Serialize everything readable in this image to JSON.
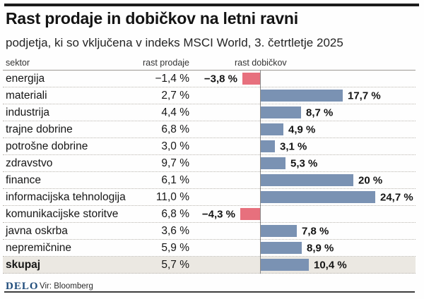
{
  "header": {
    "title": "Rast prodaje in dobičkov na letni ravni",
    "subtitle": "podjetja, ki so vključena v indeks MSCI World, 3. četrtletje 2025"
  },
  "table": {
    "columns": [
      "sektor",
      "rast prodaje",
      "rast dobičkov"
    ]
  },
  "chart_data": {
    "type": "bar",
    "orientation": "horizontal",
    "title": "Rast prodaje in dobičkov na letni ravni",
    "subtitle": "podjetja, ki so vključena v indeks MSCI World, 3. četrtletje 2025",
    "categories": [
      "energija",
      "materiali",
      "industrija",
      "trajne dobrine",
      "potrošne dobrine",
      "zdravstvo",
      "finance",
      "informacijska tehnologija",
      "komunikacijske storitve",
      "javna oskrba",
      "nepremičnine",
      "skupaj"
    ],
    "series": [
      {
        "name": "rast prodaje",
        "values": [
          -1.4,
          2.7,
          4.4,
          6.8,
          3.0,
          9.7,
          6.1,
          11.0,
          6.8,
          3.6,
          5.9,
          5.7
        ]
      },
      {
        "name": "rast dobičkov",
        "values": [
          -3.8,
          17.7,
          8.7,
          4.9,
          3.1,
          5.3,
          20,
          24.7,
          -4.3,
          7.8,
          8.9,
          10.4
        ]
      }
    ],
    "xlim": [
      -5,
      26
    ],
    "grid": "dotted-row-separators",
    "colors": {
      "positive_bar": "#7a92b3",
      "negative_bar": "#e7707d",
      "total_row_bg": "#ebe8e2"
    },
    "rows": [
      {
        "sector": "energija",
        "sales": "−1,4 %",
        "profit_label": "−3,8 %",
        "profit_value": -3.8,
        "total": false
      },
      {
        "sector": "materiali",
        "sales": "2,7 %",
        "profit_label": "17,7 %",
        "profit_value": 17.7,
        "total": false
      },
      {
        "sector": "industrija",
        "sales": "4,4 %",
        "profit_label": "8,7 %",
        "profit_value": 8.7,
        "total": false
      },
      {
        "sector": "trajne dobrine",
        "sales": "6,8 %",
        "profit_label": "4,9 %",
        "profit_value": 4.9,
        "total": false
      },
      {
        "sector": "potrošne dobrine",
        "sales": "3,0 %",
        "profit_label": "3,1 %",
        "profit_value": 3.1,
        "total": false
      },
      {
        "sector": "zdravstvo",
        "sales": "9,7 %",
        "profit_label": "5,3 %",
        "profit_value": 5.3,
        "total": false
      },
      {
        "sector": "finance",
        "sales": "6,1 %",
        "profit_label": "20 %",
        "profit_value": 20,
        "total": false
      },
      {
        "sector": "informacijska tehnologija",
        "sales": "11,0 %",
        "profit_label": "24,7 %",
        "profit_value": 24.7,
        "total": false
      },
      {
        "sector": "komunikacijske storitve",
        "sales": "6,8 %",
        "profit_label": "−4,3 %",
        "profit_value": -4.3,
        "total": false
      },
      {
        "sector": "javna oskrba",
        "sales": "3,6 %",
        "profit_label": "7,8 %",
        "profit_value": 7.8,
        "total": false
      },
      {
        "sector": "nepremičnine",
        "sales": "5,9 %",
        "profit_label": "8,9 %",
        "profit_value": 8.9,
        "total": false
      },
      {
        "sector": "skupaj",
        "sales": "5,7 %",
        "profit_label": "10,4 %",
        "profit_value": 10.4,
        "total": true
      }
    ]
  },
  "footer": {
    "logo": "DELO",
    "source": "Vir: Bloomberg"
  }
}
